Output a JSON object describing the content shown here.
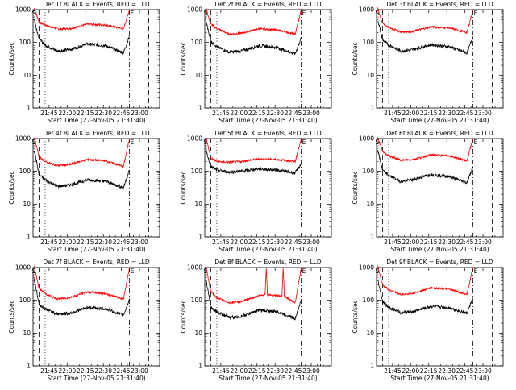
{
  "chart_data": [
    {
      "type": "line",
      "title": "Det 1f BLACK = Events, RED = LLD",
      "xlabel": "Start Time (27-Nov-05 21:31:40)",
      "ylabel": "Counts/sec",
      "yscale": "log",
      "ylim": [
        1,
        1000
      ],
      "xlim_minutes_after_start": [
        0,
        105
      ],
      "x_tick_labels": [
        "21:45",
        "22:00",
        "22:15",
        "22:30",
        "22:45",
        "23:00"
      ],
      "x_tick_positions_minutes": [
        13.3,
        28.3,
        43.3,
        58.3,
        73.3,
        88.3
      ],
      "y_tick_labels": [
        "1",
        "10",
        "100",
        "1000"
      ],
      "y_tick_values": [
        1,
        10,
        100,
        1000
      ],
      "corner_labels": [
        "S",
        "E"
      ],
      "markers": [
        {
          "style": "dashed",
          "x": 5.0
        },
        {
          "style": "dotted",
          "x": 10.0
        },
        {
          "style": "dashdot",
          "x": 80.0
        },
        {
          "style": "dashed",
          "x": 96.0
        }
      ],
      "series": [
        {
          "color": "#ff0000",
          "x": [
            1,
            5,
            10,
            20,
            30,
            45,
            60,
            75,
            80
          ],
          "y": [
            1100,
            420,
            340,
            260,
            260,
            360,
            340,
            260,
            1000
          ]
        },
        {
          "color": "#000000",
          "x": [
            1,
            5,
            10,
            20,
            30,
            45,
            60,
            75,
            80
          ],
          "y": [
            500,
            130,
            85,
            55,
            60,
            90,
            80,
            48,
            160
          ]
        }
      ]
    },
    {
      "type": "line",
      "title": "Det 2f BLACK = Events, RED = LLD",
      "xlabel": "Start Time (27-Nov-05 21:31:40)",
      "ylabel": "Counts/sec",
      "yscale": "log",
      "ylim": [
        1,
        1000
      ],
      "xlim_minutes_after_start": [
        0,
        105
      ],
      "x_tick_labels": [
        "21:45",
        "22:00",
        "22:15",
        "22:30",
        "22:45",
        "23:00"
      ],
      "x_tick_positions_minutes": [
        13.3,
        28.3,
        43.3,
        58.3,
        73.3,
        88.3
      ],
      "y_tick_labels": [
        "1",
        "10",
        "100",
        "1000"
      ],
      "y_tick_values": [
        1,
        10,
        100,
        1000
      ],
      "corner_labels": [
        "S",
        "E"
      ],
      "markers": [
        {
          "style": "dashed",
          "x": 5.0
        },
        {
          "style": "dotted",
          "x": 10.0
        },
        {
          "style": "dashdot",
          "x": 80.0
        },
        {
          "style": "dashed",
          "x": 96.0
        }
      ],
      "series": [
        {
          "color": "#ff0000",
          "x": [
            1,
            5,
            10,
            20,
            30,
            45,
            60,
            75,
            80
          ],
          "y": [
            1100,
            360,
            270,
            180,
            190,
            260,
            240,
            180,
            1000
          ]
        },
        {
          "color": "#000000",
          "x": [
            1,
            5,
            10,
            20,
            30,
            45,
            60,
            75,
            80
          ],
          "y": [
            450,
            110,
            75,
            50,
            55,
            80,
            70,
            45,
            140
          ]
        }
      ]
    },
    {
      "type": "line",
      "title": "Det 3f BLACK = Events, RED = LLD",
      "xlabel": "Start Time (27-Nov-05 21:31:40)",
      "ylabel": "Counts/sec",
      "yscale": "log",
      "ylim": [
        1,
        1000
      ],
      "xlim_minutes_after_start": [
        0,
        105
      ],
      "x_tick_labels": [
        "21:45",
        "22:00",
        "22:15",
        "22:30",
        "22:45",
        "23:00"
      ],
      "x_tick_positions_minutes": [
        13.3,
        28.3,
        43.3,
        58.3,
        73.3,
        88.3
      ],
      "y_tick_labels": [
        "1",
        "10",
        "100",
        "1000"
      ],
      "y_tick_values": [
        1,
        10,
        100,
        1000
      ],
      "corner_labels": [
        "S",
        "E"
      ],
      "markers": [
        {
          "style": "dashed",
          "x": 5.0
        },
        {
          "style": "dotted",
          "x": 10.0
        },
        {
          "style": "dashdot",
          "x": 80.0
        },
        {
          "style": "dashed",
          "x": 96.0
        }
      ],
      "series": [
        {
          "color": "#ff0000",
          "x": [
            1,
            5,
            10,
            20,
            30,
            45,
            60,
            75,
            80
          ],
          "y": [
            1100,
            380,
            290,
            210,
            215,
            300,
            280,
            200,
            1000
          ]
        },
        {
          "color": "#000000",
          "x": [
            1,
            5,
            10,
            20,
            30,
            45,
            60,
            75,
            80
          ],
          "y": [
            500,
            120,
            85,
            55,
            60,
            85,
            75,
            48,
            150
          ]
        }
      ]
    },
    {
      "type": "line",
      "title": "Det 4f BLACK = Events, RED = LLD",
      "xlabel": "Start Time (27-Nov-05 21:31:40)",
      "ylabel": "Counts/sec",
      "yscale": "log",
      "ylim": [
        1,
        1000
      ],
      "xlim_minutes_after_start": [
        0,
        105
      ],
      "x_tick_labels": [
        "21:45",
        "22:00",
        "22:15",
        "22:30",
        "22:45",
        "23:00"
      ],
      "x_tick_positions_minutes": [
        13.3,
        28.3,
        43.3,
        58.3,
        73.3,
        88.3
      ],
      "y_tick_labels": [
        "1",
        "10",
        "100",
        "1000"
      ],
      "y_tick_values": [
        1,
        10,
        100,
        1000
      ],
      "corner_labels": [
        "S",
        "E"
      ],
      "markers": [
        {
          "style": "dashed",
          "x": 5.0
        },
        {
          "style": "dotted",
          "x": 10.0
        },
        {
          "style": "dashdot",
          "x": 80.0
        },
        {
          "style": "dashed",
          "x": 96.0
        }
      ],
      "series": [
        {
          "color": "#ff0000",
          "x": [
            1,
            5,
            10,
            20,
            30,
            45,
            60,
            75,
            80
          ],
          "y": [
            1100,
            280,
            200,
            150,
            160,
            230,
            210,
            140,
            1000
          ]
        },
        {
          "color": "#000000",
          "x": [
            1,
            5,
            10,
            20,
            30,
            45,
            60,
            75,
            80
          ],
          "y": [
            450,
            80,
            55,
            35,
            38,
            55,
            50,
            32,
            110
          ]
        }
      ]
    },
    {
      "type": "line",
      "title": "Det 5f BLACK = Events, RED = LLD",
      "xlabel": "Start Time (27-Nov-05 21:31:40)",
      "ylabel": "Counts/sec",
      "yscale": "log",
      "ylim": [
        1,
        1000
      ],
      "xlim_minutes_after_start": [
        0,
        105
      ],
      "x_tick_labels": [
        "21:45",
        "22:00",
        "22:15",
        "22:30",
        "22:45",
        "23:00"
      ],
      "x_tick_positions_minutes": [
        13.3,
        28.3,
        43.3,
        58.3,
        73.3,
        88.3
      ],
      "y_tick_labels": [
        "1",
        "10",
        "100",
        "1000"
      ],
      "y_tick_values": [
        1,
        10,
        100,
        1000
      ],
      "corner_labels": [
        "S",
        "E"
      ],
      "markers": [
        {
          "style": "dashed",
          "x": 5.0
        },
        {
          "style": "dotted",
          "x": 10.0
        },
        {
          "style": "dashdot",
          "x": 80.0
        },
        {
          "style": "dashed",
          "x": 96.0
        }
      ],
      "series": [
        {
          "color": "#ff0000",
          "x": [
            1,
            5,
            10,
            20,
            30,
            45,
            60,
            75,
            80
          ],
          "y": [
            1100,
            260,
            200,
            190,
            200,
            240,
            230,
            200,
            1000
          ]
        },
        {
          "color": "#000000",
          "x": [
            1,
            5,
            10,
            20,
            30,
            45,
            60,
            75,
            80
          ],
          "y": [
            450,
            140,
            110,
            95,
            100,
            120,
            110,
            90,
            170
          ]
        }
      ]
    },
    {
      "type": "line",
      "title": "Det 6f BLACK = Events, RED = LLD",
      "xlabel": "Start Time (27-Nov-05 21:31:40)",
      "ylabel": "Counts/sec",
      "yscale": "log",
      "ylim": [
        1,
        1000
      ],
      "xlim_minutes_after_start": [
        0,
        105
      ],
      "x_tick_labels": [
        "21:45",
        "22:00",
        "22:15",
        "22:30",
        "22:45",
        "23:00"
      ],
      "x_tick_positions_minutes": [
        13.3,
        28.3,
        43.3,
        58.3,
        73.3,
        88.3
      ],
      "y_tick_labels": [
        "1",
        "10",
        "100",
        "1000"
      ],
      "y_tick_values": [
        1,
        10,
        100,
        1000
      ],
      "corner_labels": [
        "S",
        "E"
      ],
      "markers": [
        {
          "style": "dashed",
          "x": 5.0
        },
        {
          "style": "dotted",
          "x": 10.0
        },
        {
          "style": "dashdot",
          "x": 80.0
        },
        {
          "style": "dashed",
          "x": 96.0
        }
      ],
      "series": [
        {
          "color": "#ff0000",
          "x": [
            1,
            5,
            10,
            20,
            30,
            45,
            60,
            75,
            80
          ],
          "y": [
            1100,
            400,
            300,
            220,
            230,
            320,
            300,
            210,
            1000
          ]
        },
        {
          "color": "#000000",
          "x": [
            1,
            5,
            10,
            20,
            30,
            45,
            60,
            75,
            80
          ],
          "y": [
            450,
            110,
            75,
            50,
            55,
            80,
            70,
            45,
            140
          ]
        }
      ]
    },
    {
      "type": "line",
      "title": "Det 7f BLACK = Events, RED = LLD",
      "xlabel": "Start Time (27-Nov-05 21:31:40)",
      "ylabel": "Counts/sec",
      "yscale": "log",
      "ylim": [
        1,
        1000
      ],
      "xlim_minutes_after_start": [
        0,
        105
      ],
      "x_tick_labels": [
        "21:45",
        "22:00",
        "22:15",
        "22:30",
        "22:45",
        "23:00"
      ],
      "x_tick_positions_minutes": [
        13.3,
        28.3,
        43.3,
        58.3,
        73.3,
        88.3
      ],
      "y_tick_labels": [
        "1",
        "10",
        "100",
        "1000"
      ],
      "y_tick_values": [
        1,
        10,
        100,
        1000
      ],
      "corner_labels": [
        "S",
        "E"
      ],
      "markers": [
        {
          "style": "dashed",
          "x": 5.0
        },
        {
          "style": "dotted",
          "x": 10.0
        },
        {
          "style": "dashdot",
          "x": 80.0
        },
        {
          "style": "dashed",
          "x": 96.0
        }
      ],
      "series": [
        {
          "color": "#ff0000",
          "x": [
            1,
            5,
            10,
            20,
            30,
            45,
            60,
            75,
            80
          ],
          "y": [
            1100,
            230,
            160,
            110,
            120,
            180,
            160,
            110,
            1000
          ]
        },
        {
          "color": "#000000",
          "x": [
            1,
            5,
            10,
            20,
            30,
            45,
            60,
            75,
            80
          ],
          "y": [
            450,
            75,
            55,
            38,
            40,
            60,
            55,
            35,
            110
          ]
        }
      ]
    },
    {
      "type": "line",
      "title": "Det 8f BLACK = Events, RED = LLD",
      "xlabel": "Start Time (27-Nov-05 21:31:40)",
      "ylabel": "Counts/sec",
      "yscale": "log",
      "ylim": [
        1,
        1000
      ],
      "xlim_minutes_after_start": [
        0,
        105
      ],
      "x_tick_labels": [
        "21:45",
        "22:00",
        "22:15",
        "22:30",
        "22:45",
        "23:00"
      ],
      "x_tick_positions_minutes": [
        13.3,
        28.3,
        43.3,
        58.3,
        73.3,
        88.3
      ],
      "y_tick_labels": [
        "1",
        "10",
        "100",
        "1000"
      ],
      "y_tick_values": [
        1,
        10,
        100,
        1000
      ],
      "corner_labels": [
        "S",
        "E"
      ],
      "markers": [
        {
          "style": "dashed",
          "x": 5.0
        },
        {
          "style": "dotted",
          "x": 10.0
        },
        {
          "style": "dashdot",
          "x": 80.0
        },
        {
          "style": "dashed",
          "x": 96.0
        }
      ],
      "series": [
        {
          "color": "#ff0000",
          "x": [
            1,
            5,
            10,
            20,
            30,
            45,
            50,
            51,
            52,
            60,
            64,
            65,
            66,
            75,
            80
          ],
          "y": [
            1100,
            180,
            120,
            85,
            90,
            140,
            150,
            1000,
            150,
            140,
            130,
            1000,
            130,
            85,
            1000
          ]
        },
        {
          "color": "#000000",
          "x": [
            1,
            5,
            10,
            20,
            30,
            45,
            60,
            75,
            80
          ],
          "y": [
            450,
            60,
            45,
            30,
            32,
            50,
            45,
            28,
            100
          ]
        }
      ]
    },
    {
      "type": "line",
      "title": "Det 9f BLACK = Events, RED = LLD",
      "xlabel": "Start Time (27-Nov-05 21:31:40)",
      "ylabel": "Counts/sec",
      "yscale": "log",
      "ylim": [
        1,
        1000
      ],
      "xlim_minutes_after_start": [
        0,
        105
      ],
      "x_tick_labels": [
        "21:45",
        "22:00",
        "22:15",
        "22:30",
        "22:45",
        "23:00"
      ],
      "x_tick_positions_minutes": [
        13.3,
        28.3,
        43.3,
        58.3,
        73.3,
        88.3
      ],
      "y_tick_labels": [
        "1",
        "10",
        "100",
        "1000"
      ],
      "y_tick_values": [
        1,
        10,
        100,
        1000
      ],
      "corner_labels": [
        "S",
        "E"
      ],
      "markers": [
        {
          "style": "dashed",
          "x": 5.0
        },
        {
          "style": "dotted",
          "x": 10.0
        },
        {
          "style": "dashdot",
          "x": 80.0
        },
        {
          "style": "dashed",
          "x": 96.0
        }
      ],
      "series": [
        {
          "color": "#ff0000",
          "x": [
            1,
            5,
            10,
            20,
            30,
            45,
            60,
            75,
            80
          ],
          "y": [
            1100,
            300,
            210,
            150,
            160,
            240,
            220,
            150,
            1000
          ]
        },
        {
          "color": "#000000",
          "x": [
            1,
            5,
            10,
            20,
            30,
            45,
            60,
            75,
            80
          ],
          "y": [
            450,
            90,
            62,
            42,
            45,
            65,
            60,
            40,
            120
          ]
        }
      ]
    }
  ]
}
